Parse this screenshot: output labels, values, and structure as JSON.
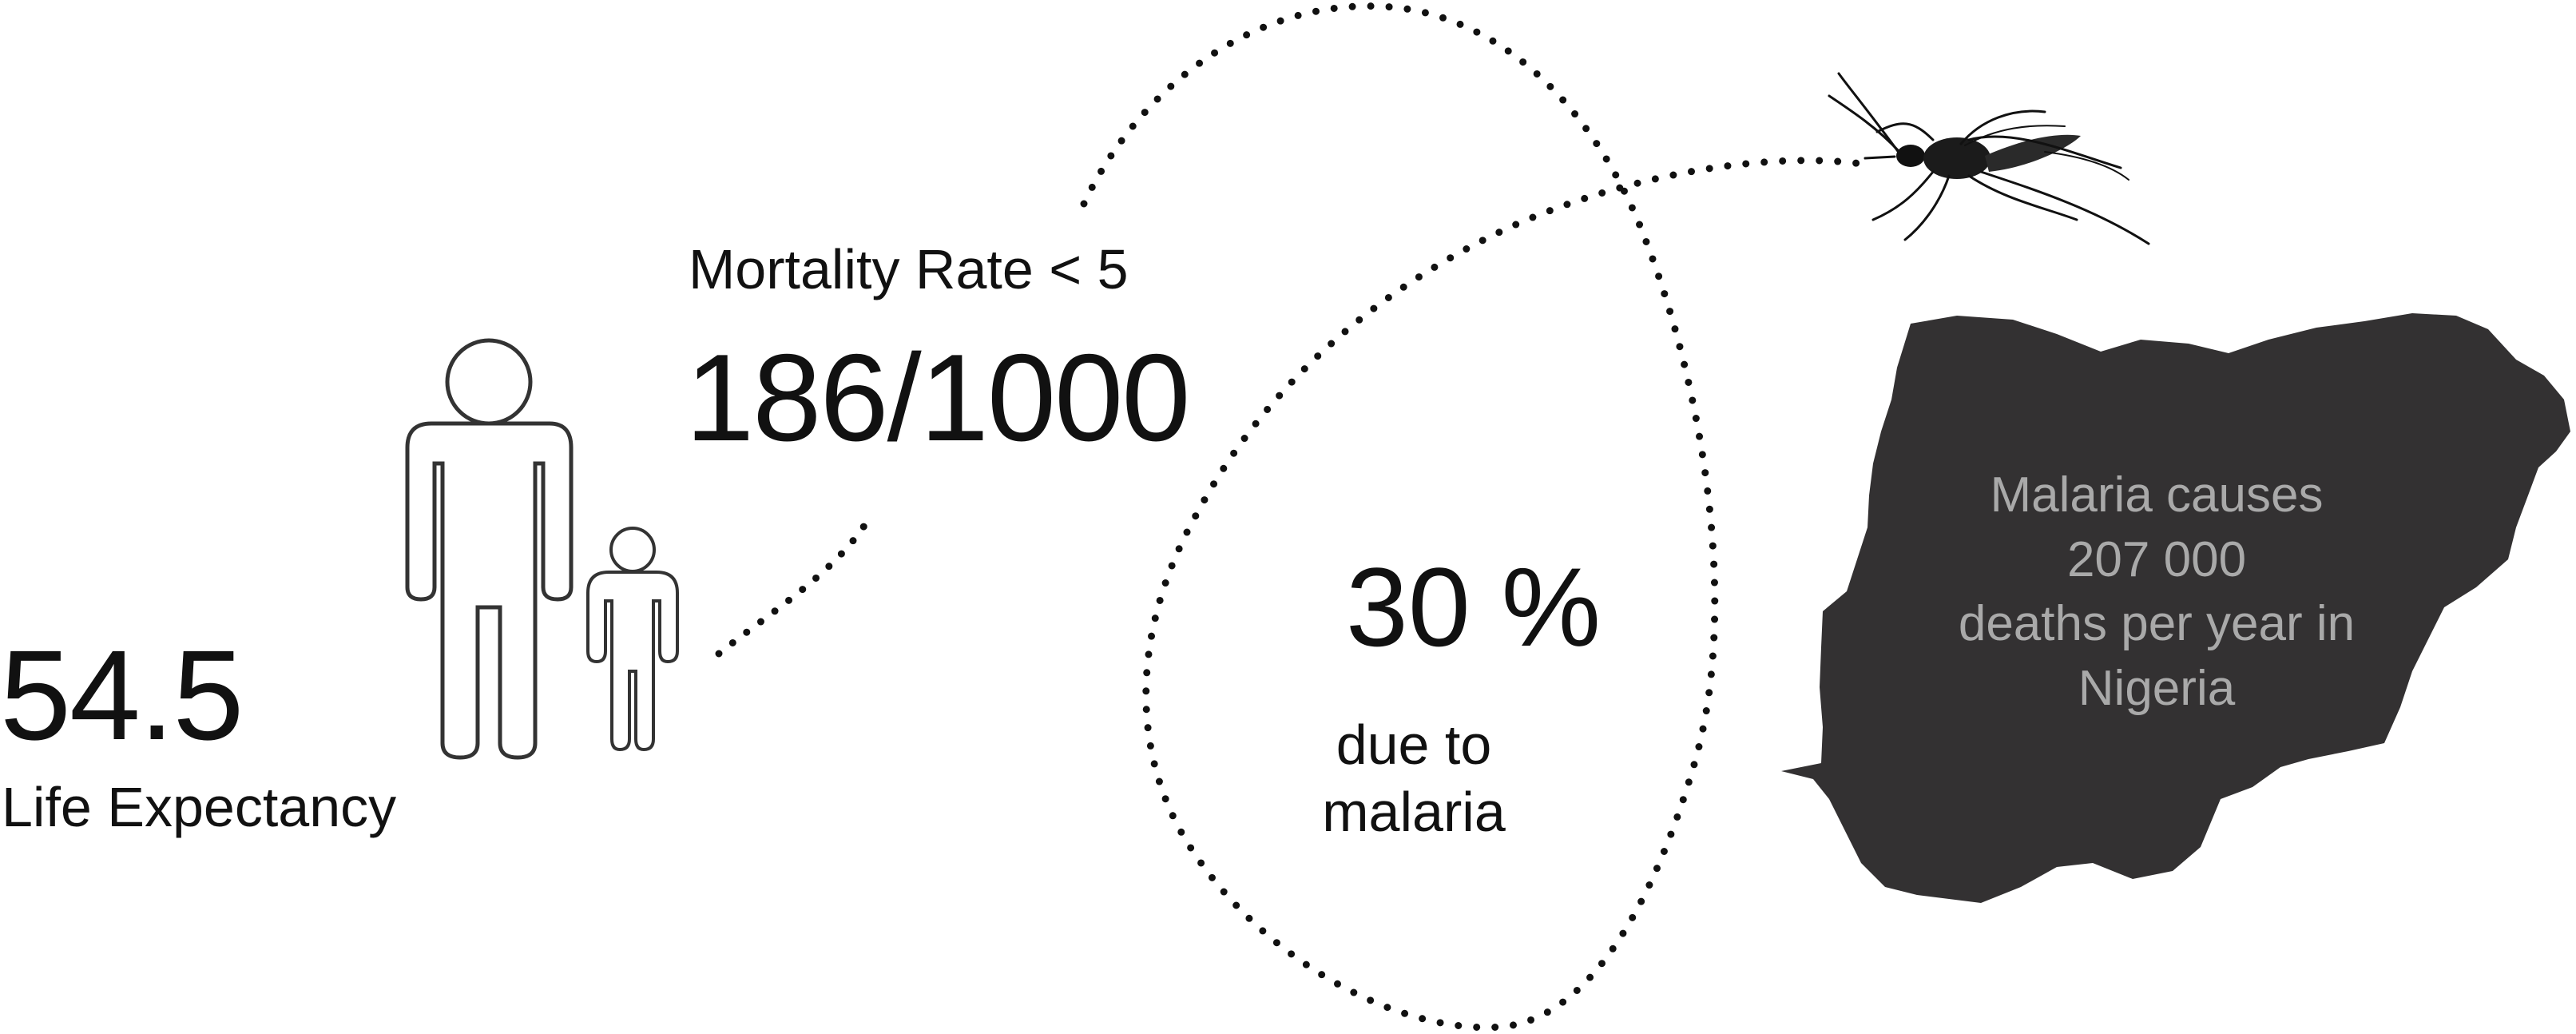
{
  "life_expectancy": {
    "value": "54.5",
    "label": "Life Expectancy"
  },
  "mortality": {
    "label": "Mortality Rate < 5",
    "value": "186/1000"
  },
  "malaria_share": {
    "value": "30 %",
    "label": "due to malaria"
  },
  "nigeria": {
    "text_lines": [
      "Malaria causes",
      "207 000",
      "deaths per year in",
      "Nigeria"
    ]
  },
  "icons": [
    "adult-figure-icon",
    "child-figure-icon",
    "mosquito-icon",
    "nigeria-map-icon"
  ],
  "colors": {
    "text": "#111111",
    "map_fill": "#333132",
    "map_text": "#a9a9a9",
    "dots": "#111111"
  }
}
